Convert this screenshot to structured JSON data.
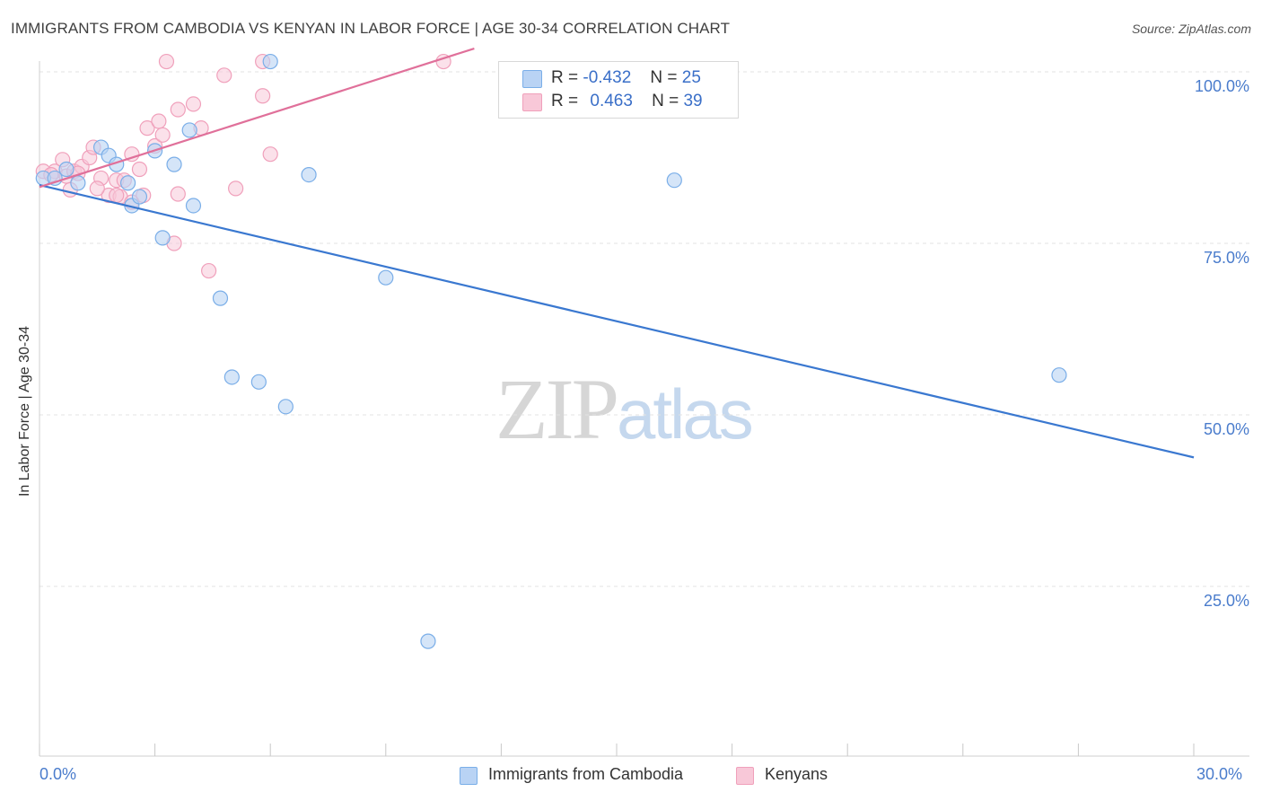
{
  "title": "IMMIGRANTS FROM CAMBODIA VS KENYAN IN LABOR FORCE | AGE 30-34 CORRELATION CHART",
  "source": "Source: ZipAtlas.com",
  "watermark": {
    "zip": "ZIP",
    "atlas": "atlas"
  },
  "colors": {
    "blue": "#7aaee8",
    "blue_fill": "#b9d3f4",
    "blue_line": "#3a78d0",
    "pink": "#f0a0bb",
    "pink_fill": "#f8c8d8",
    "pink_line": "#e0709a",
    "tick_text": "#4a7ccc"
  },
  "legend": {
    "row1": {
      "r_label": "R =",
      "r_value": "-0.432",
      "n_label": "N =",
      "n_value": "25"
    },
    "row2": {
      "r_label": "R =",
      "r_value": "0.463",
      "n_label": "N =",
      "n_value": "39"
    }
  },
  "bottom_legend": [
    "Immigrants from Cambodia",
    "Kenyans"
  ],
  "chart_data": {
    "type": "scatter",
    "title": "IMMIGRANTS FROM CAMBODIA VS KENYAN IN LABOR FORCE | AGE 30-34 CORRELATION CHART",
    "xlabel": "",
    "ylabel": "In Labor Force | Age 30-34",
    "xlim": [
      0,
      30
    ],
    "ylim": [
      0,
      105
    ],
    "x_tick_labels": [
      "0.0%",
      "30.0%"
    ],
    "y_ticks": [
      25,
      50,
      75,
      100
    ],
    "y_tick_labels": [
      "25.0%",
      "50.0%",
      "75.0%",
      "100.0%"
    ],
    "grid": true,
    "legend_position": "top-center",
    "series": [
      {
        "name": "Immigrants from Cambodia",
        "color": "#7aaee8",
        "points": [
          [
            0.1,
            84.5
          ],
          [
            0.4,
            84.5
          ],
          [
            0.7,
            85.8
          ],
          [
            1.0,
            83.8
          ],
          [
            1.6,
            89.0
          ],
          [
            1.8,
            87.8
          ],
          [
            2.0,
            86.5
          ],
          [
            2.3,
            83.8
          ],
          [
            2.4,
            80.5
          ],
          [
            2.6,
            81.8
          ],
          [
            3.0,
            88.5
          ],
          [
            3.2,
            75.8
          ],
          [
            3.5,
            86.5
          ],
          [
            3.9,
            91.5
          ],
          [
            4.0,
            80.5
          ],
          [
            4.7,
            67.0
          ],
          [
            5.0,
            55.5
          ],
          [
            5.7,
            54.8
          ],
          [
            6.0,
            101.5
          ],
          [
            6.4,
            51.2
          ],
          [
            7.0,
            85.0
          ],
          [
            9.0,
            70.0
          ],
          [
            10.1,
            17.0
          ],
          [
            16.5,
            84.2
          ],
          [
            26.5,
            55.8
          ]
        ],
        "trend": {
          "x": [
            0,
            30
          ],
          "y": [
            83.5,
            43.8
          ]
        }
      },
      {
        "name": "Kenyans",
        "color": "#f0a0bb",
        "points": [
          [
            0.1,
            85.5
          ],
          [
            0.4,
            85.5
          ],
          [
            0.6,
            87.2
          ],
          [
            0.7,
            84.8
          ],
          [
            0.8,
            82.8
          ],
          [
            0.9,
            85.5
          ],
          [
            1.1,
            86.2
          ],
          [
            1.3,
            87.5
          ],
          [
            1.4,
            89.0
          ],
          [
            1.6,
            84.5
          ],
          [
            1.8,
            82.0
          ],
          [
            2.0,
            84.2
          ],
          [
            2.1,
            81.8
          ],
          [
            2.2,
            84.2
          ],
          [
            2.4,
            81.0
          ],
          [
            2.4,
            88.0
          ],
          [
            2.6,
            85.8
          ],
          [
            2.7,
            82.0
          ],
          [
            2.8,
            91.8
          ],
          [
            3.0,
            89.2
          ],
          [
            3.1,
            92.8
          ],
          [
            3.2,
            90.8
          ],
          [
            3.3,
            101.5
          ],
          [
            3.5,
            75.0
          ],
          [
            3.6,
            82.2
          ],
          [
            3.6,
            94.5
          ],
          [
            4.0,
            95.3
          ],
          [
            4.2,
            91.8
          ],
          [
            4.4,
            71.0
          ],
          [
            4.8,
            99.5
          ],
          [
            5.1,
            83.0
          ],
          [
            5.8,
            101.5
          ],
          [
            5.8,
            96.5
          ],
          [
            6.0,
            88.0
          ],
          [
            10.5,
            101.5
          ],
          [
            0.3,
            85.0
          ],
          [
            1.0,
            85.2
          ],
          [
            1.5,
            83.0
          ],
          [
            2.0,
            82.0
          ]
        ],
        "trend": {
          "x": [
            0,
            11.3
          ],
          "y": [
            83.2,
            103.4
          ]
        }
      }
    ]
  }
}
